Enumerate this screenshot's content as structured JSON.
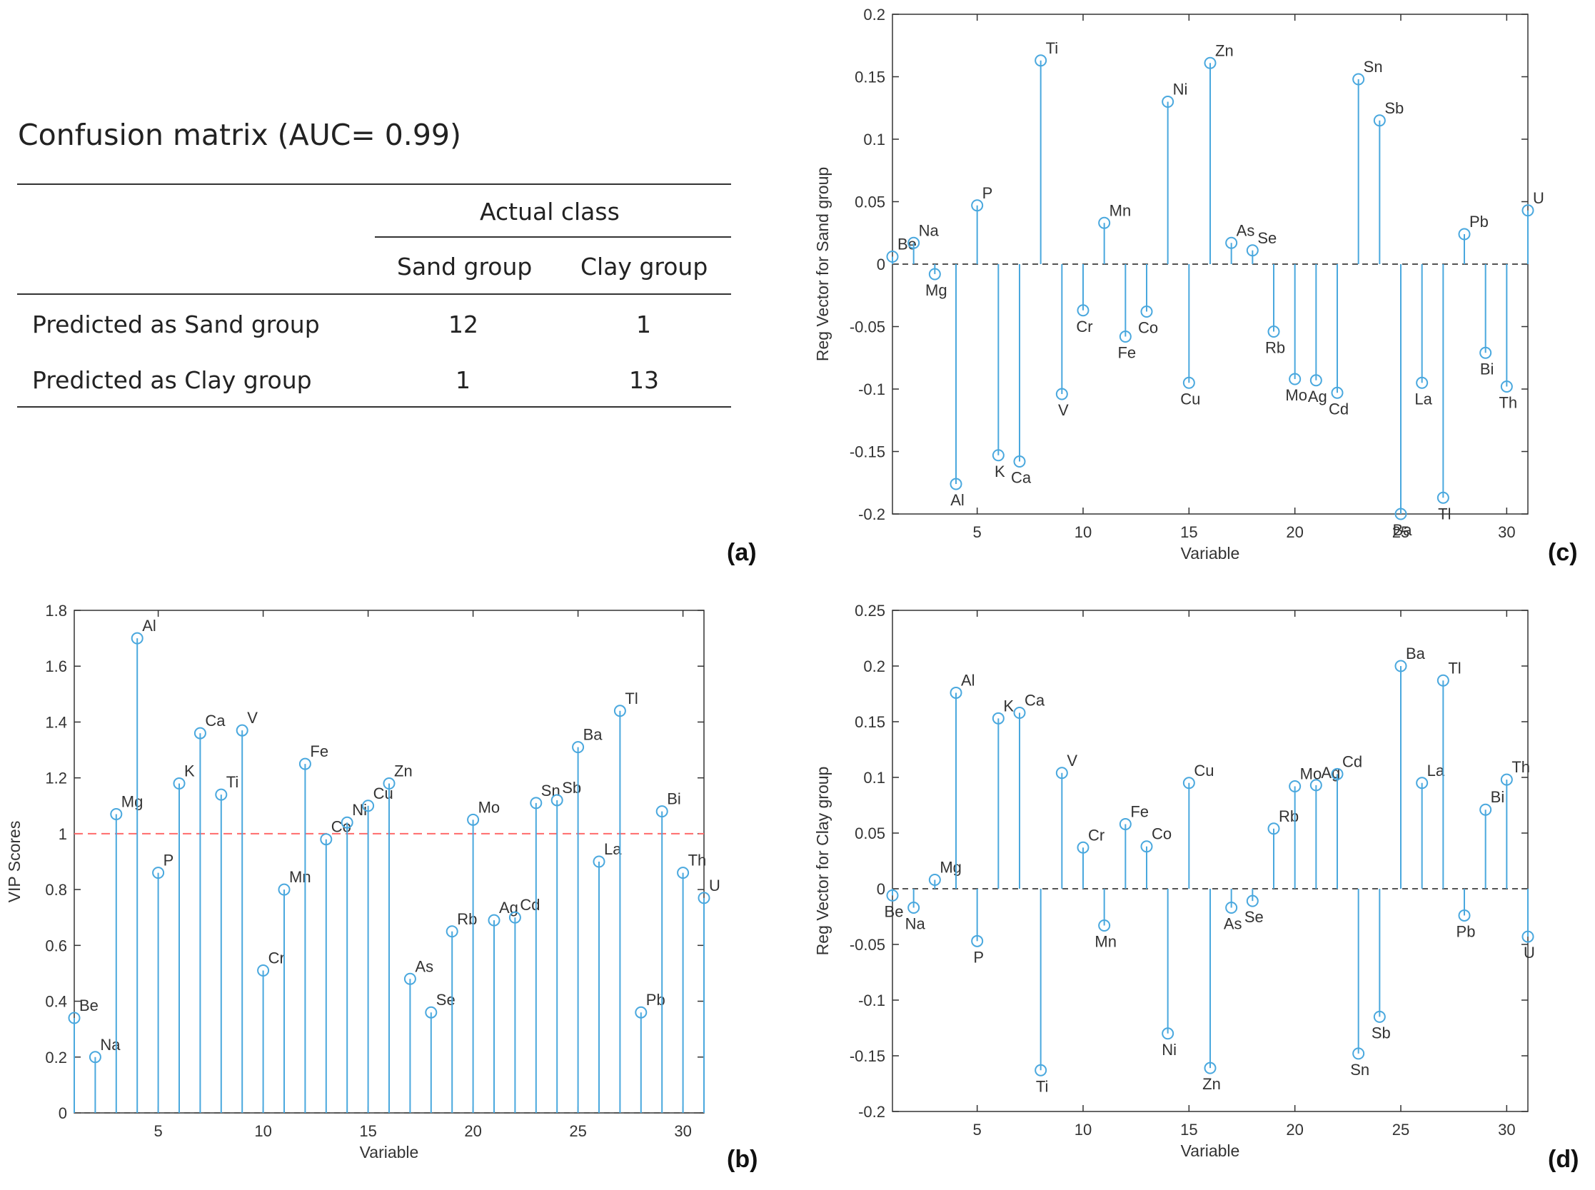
{
  "confusion_matrix": {
    "title": "Confusion matrix (AUC= 0.99)",
    "header_group": "Actual class",
    "columns": [
      "Sand group",
      "Clay group"
    ],
    "rows": [
      {
        "label": "Predicted  as Sand group",
        "values": [
          "12",
          "1"
        ]
      },
      {
        "label": "Predicted  as Clay group",
        "values": [
          "1",
          "13"
        ]
      }
    ]
  },
  "panel_labels": {
    "a": "(a)",
    "b": "(b)",
    "c": "(c)",
    "d": "(d)"
  },
  "colors": {
    "stem": "#4aa8de",
    "threshold": "#ff6b6b",
    "zero": "#555555"
  },
  "chart_data": [
    {
      "id": "c",
      "type": "stem",
      "title": "",
      "xlabel": "Variable",
      "ylabel": "Reg Vector for Sand group",
      "xlim": [
        1,
        31
      ],
      "ylim": [
        -0.2,
        0.2
      ],
      "xticks": [
        5,
        10,
        15,
        20,
        25,
        30
      ],
      "yticks": [
        -0.2,
        -0.15,
        -0.1,
        -0.05,
        0,
        0.05,
        0.1,
        0.15,
        0.2
      ],
      "ytick_labels": [
        "-0.2",
        "-0.15",
        "-0.1",
        "-0.05",
        "0",
        "0.05",
        "0.1",
        "0.15",
        "0.2"
      ],
      "baseline": 0,
      "labels": [
        "Be",
        "Na",
        "Mg",
        "Al",
        "P",
        "K",
        "Ca",
        "Ti",
        "V",
        "Cr",
        "Mn",
        "Fe",
        "Co",
        "Ni",
        "Cu",
        "Zn",
        "As",
        "Se",
        "Rb",
        "Mo",
        "Ag",
        "Cd",
        "Sn",
        "Sb",
        "Ba",
        "La",
        "Tl",
        "Pb",
        "Bi",
        "Th",
        "U"
      ],
      "values": [
        0.006,
        0.017,
        -0.008,
        -0.176,
        0.047,
        -0.153,
        -0.158,
        0.163,
        -0.104,
        -0.037,
        0.033,
        -0.058,
        -0.038,
        0.13,
        -0.095,
        0.161,
        0.017,
        0.011,
        -0.054,
        -0.092,
        -0.093,
        -0.103,
        0.148,
        0.115,
        -0.2,
        -0.095,
        -0.187,
        0.024,
        -0.071,
        -0.098,
        0.043
      ]
    },
    {
      "id": "b",
      "type": "stem",
      "title": "",
      "xlabel": "Variable",
      "ylabel": "VIP Scores",
      "xlim": [
        1,
        31
      ],
      "ylim": [
        0,
        1.8
      ],
      "xticks": [
        5,
        10,
        15,
        20,
        25,
        30
      ],
      "yticks": [
        0,
        0.2,
        0.4,
        0.6,
        0.8,
        1,
        1.2,
        1.4,
        1.6,
        1.8
      ],
      "ytick_labels": [
        "0",
        "0.2",
        "0.4",
        "0.6",
        "0.8",
        "1",
        "1.2",
        "1.4",
        "1.6",
        "1.8"
      ],
      "threshold": 1,
      "baseline": 0,
      "labels": [
        "Be",
        "Na",
        "Mg",
        "Al",
        "P",
        "K",
        "Ca",
        "Ti",
        "V",
        "Cr",
        "Mn",
        "Fe",
        "Co",
        "Ni",
        "Cu",
        "Zn",
        "As",
        "Se",
        "Rb",
        "Mo",
        "Ag",
        "Cd",
        "Sn",
        "Sb",
        "Ba",
        "La",
        "Tl",
        "Pb",
        "Bi",
        "Th",
        "U"
      ],
      "values": [
        0.34,
        0.2,
        1.07,
        1.7,
        0.86,
        1.18,
        1.36,
        1.14,
        1.37,
        0.51,
        0.8,
        1.25,
        0.98,
        1.04,
        1.1,
        1.18,
        0.48,
        0.36,
        0.65,
        1.05,
        0.69,
        0.7,
        1.11,
        1.12,
        1.31,
        0.9,
        1.44,
        0.36,
        1.08,
        0.86,
        0.77
      ]
    },
    {
      "id": "d",
      "type": "stem",
      "title": "",
      "xlabel": "Variable",
      "ylabel": "Reg Vector for Clay group",
      "xlim": [
        1,
        31
      ],
      "ylim": [
        -0.2,
        0.25
      ],
      "xticks": [
        5,
        10,
        15,
        20,
        25,
        30
      ],
      "yticks": [
        -0.2,
        -0.15,
        -0.1,
        -0.05,
        0,
        0.05,
        0.1,
        0.15,
        0.2,
        0.25
      ],
      "ytick_labels": [
        "-0.2",
        "-0.15",
        "-0.1",
        "-0.05",
        "0",
        "0.05",
        "0.1",
        "0.15",
        "0.2",
        "0.25"
      ],
      "baseline": 0,
      "labels": [
        "Be",
        "Na",
        "Mg",
        "Al",
        "P",
        "K",
        "Ca",
        "Ti",
        "V",
        "Cr",
        "Mn",
        "Fe",
        "Co",
        "Ni",
        "Cu",
        "Zn",
        "As",
        "Se",
        "Rb",
        "Mo",
        "Ag",
        "Cd",
        "Sn",
        "Sb",
        "Ba",
        "La",
        "Tl",
        "Pb",
        "Bi",
        "Th",
        "U"
      ],
      "values": [
        -0.006,
        -0.017,
        0.008,
        0.176,
        -0.047,
        0.153,
        0.158,
        -0.163,
        0.104,
        0.037,
        -0.033,
        0.058,
        0.038,
        -0.13,
        0.095,
        -0.161,
        -0.017,
        -0.011,
        0.054,
        0.092,
        0.093,
        0.103,
        -0.148,
        -0.115,
        0.2,
        0.095,
        0.187,
        -0.024,
        0.071,
        0.098,
        -0.043
      ]
    }
  ]
}
